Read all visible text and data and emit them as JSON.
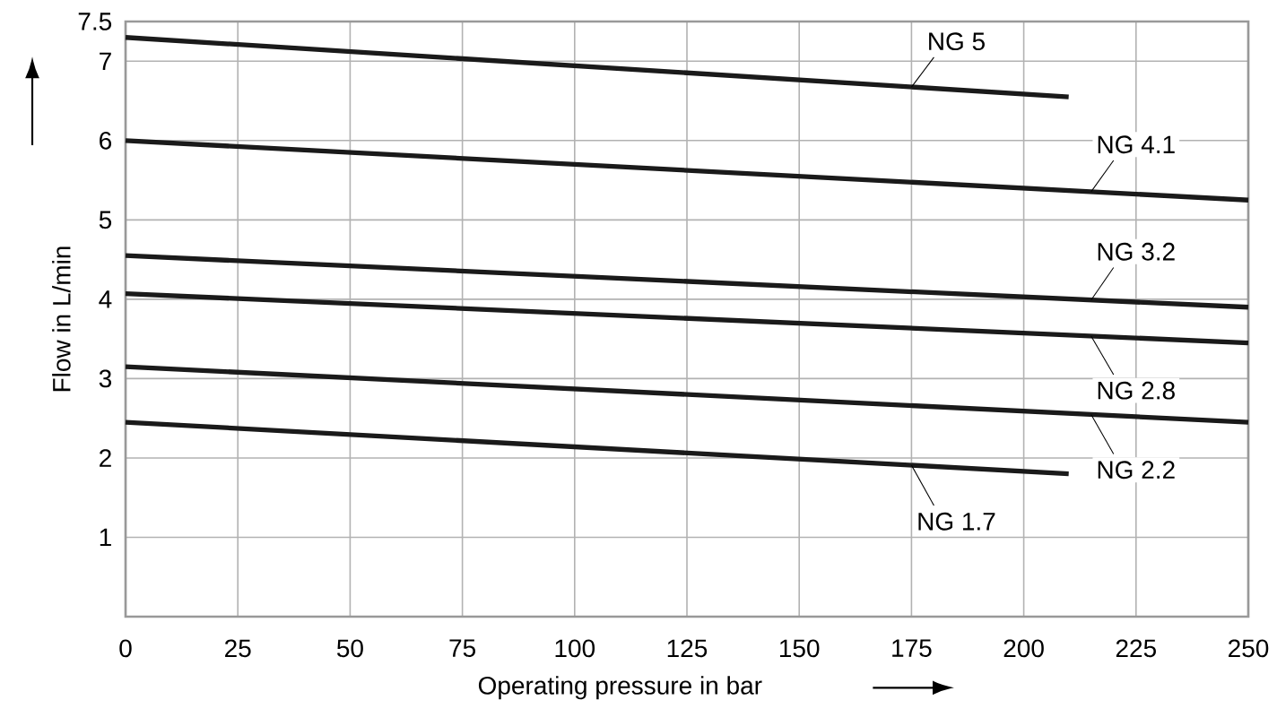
{
  "chart_data": {
    "type": "line",
    "xlabel": "Operating pressure in bar",
    "ylabel": "Flow in L/min",
    "xlim": [
      0,
      250
    ],
    "xticks": [
      0,
      25,
      50,
      75,
      100,
      125,
      150,
      175,
      200,
      225,
      250
    ],
    "ylim": [
      0,
      7.5
    ],
    "yticks": [
      1,
      2,
      3,
      4,
      5,
      6,
      7,
      7.5
    ],
    "grid": true,
    "series": [
      {
        "name": "NG 5",
        "color": "#1a1a1a",
        "x": [
          0,
          210
        ],
        "values": [
          7.3,
          6.55
        ]
      },
      {
        "name": "NG 4.1",
        "color": "#1a1a1a",
        "x": [
          0,
          250
        ],
        "values": [
          6.0,
          5.25
        ]
      },
      {
        "name": "NG 3.2",
        "color": "#1a1a1a",
        "x": [
          0,
          250
        ],
        "values": [
          4.55,
          3.9
        ]
      },
      {
        "name": "NG 2.8",
        "color": "#1a1a1a",
        "x": [
          0,
          250
        ],
        "values": [
          4.07,
          3.45
        ]
      },
      {
        "name": "NG 2.2",
        "color": "#1a1a1a",
        "x": [
          0,
          250
        ],
        "values": [
          3.15,
          2.45
        ]
      },
      {
        "name": "NG 1.7",
        "color": "#1a1a1a",
        "x": [
          0,
          210
        ],
        "values": [
          2.45,
          1.8
        ]
      }
    ]
  }
}
